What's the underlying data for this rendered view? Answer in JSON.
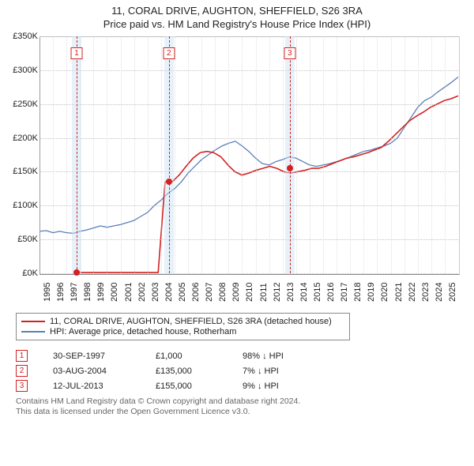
{
  "title": "11, CORAL DRIVE, AUGHTON, SHEFFIELD, S26 3RA",
  "subtitle": "Price paid vs. HM Land Registry's House Price Index (HPI)",
  "chart": {
    "background": "#ffffff",
    "plot_border": "#888888",
    "grid_color": "#aaaaaa",
    "minor_grid_color": "#cccccc",
    "y": {
      "min": 0,
      "max": 350000,
      "step": 50000,
      "labels": [
        "£0K",
        "£50K",
        "£100K",
        "£150K",
        "£200K",
        "£250K",
        "£300K",
        "£350K"
      ]
    },
    "x": {
      "years": [
        "1995",
        "1996",
        "1997",
        "1998",
        "1999",
        "2000",
        "2001",
        "2002",
        "2003",
        "2004",
        "2005",
        "2006",
        "2007",
        "2008",
        "2009",
        "2010",
        "2011",
        "2012",
        "2013",
        "2014",
        "2015",
        "2016",
        "2017",
        "2018",
        "2019",
        "2020",
        "2021",
        "2022",
        "2023",
        "2024",
        "2025"
      ]
    },
    "highlight_band_color": "#cde3f5",
    "series": {
      "hpi": {
        "label": "HPI: Average price, detached house, Rotherham",
        "color": "#5b7fb8",
        "values": [
          62,
          63,
          60,
          62,
          60,
          59,
          62,
          64,
          67,
          70,
          68,
          70,
          72,
          75,
          78,
          84,
          90,
          100,
          108,
          118,
          125,
          135,
          148,
          158,
          168,
          175,
          182,
          188,
          192,
          195,
          188,
          180,
          170,
          162,
          160,
          165,
          168,
          172,
          170,
          165,
          160,
          158,
          160,
          162,
          165,
          168,
          172,
          176,
          180,
          182,
          185,
          188,
          192,
          200,
          215,
          230,
          245,
          255,
          260,
          268,
          275,
          282,
          290
        ]
      },
      "price": {
        "label": "11, CORAL DRIVE, AUGHTON, SHEFFIELD, S26 3RA (detached house)",
        "color": "#d32020",
        "values": [
          null,
          null,
          null,
          null,
          null,
          1,
          1,
          1,
          1,
          1,
          1,
          1,
          1,
          1,
          1,
          1,
          1,
          1,
          135,
          135,
          145,
          158,
          170,
          178,
          180,
          178,
          172,
          160,
          150,
          145,
          148,
          152,
          155,
          158,
          155,
          150,
          148,
          150,
          152,
          155,
          155,
          158,
          162,
          166,
          170,
          172,
          175,
          178,
          182,
          186,
          195,
          205,
          215,
          225,
          232,
          238,
          245,
          250,
          255,
          258,
          262
        ]
      }
    },
    "events": [
      {
        "n": "1",
        "year": 1997.75,
        "date": "30-SEP-1997",
        "price": "£1,000",
        "diff": "98% ↓ HPI",
        "color": "#d32020",
        "dot_y": 1
      },
      {
        "n": "2",
        "year": 2004.58,
        "date": "03-AUG-2004",
        "price": "£135,000",
        "diff": "7% ↓ HPI",
        "color": "#d32020",
        "dot_y": 135
      },
      {
        "n": "3",
        "year": 2013.53,
        "date": "12-JUL-2013",
        "price": "£155,000",
        "diff": "9% ↓ HPI",
        "color": "#d32020",
        "dot_y": 155
      }
    ]
  },
  "legend": {
    "series_price_label": "11, CORAL DRIVE, AUGHTON, SHEFFIELD, S26 3RA (detached house)",
    "series_hpi_label": "HPI: Average price, detached house, Rotherham"
  },
  "footnote": {
    "line1": "Contains HM Land Registry data © Crown copyright and database right 2024.",
    "line2": "This data is licensed under the Open Government Licence v3.0."
  }
}
